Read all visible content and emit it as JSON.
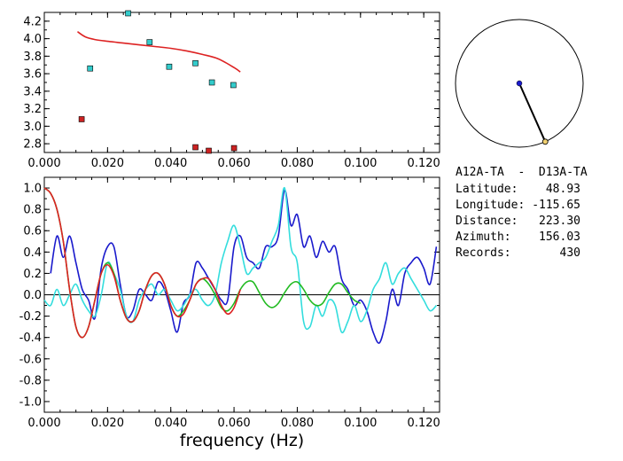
{
  "station_pair": "A12A-TA  -  D13A-TA",
  "info": [
    {
      "label": "Latitude:",
      "value": "48.93"
    },
    {
      "label": "Longitude:",
      "value": "-115.65"
    },
    {
      "label": "Distance:",
      "value": "223.30"
    },
    {
      "label": "Azimuth:",
      "value": "156.03"
    },
    {
      "label": "Records:",
      "value": "430"
    }
  ],
  "compass": {
    "azimuth_deg": 156.03
  },
  "chart_data": [
    {
      "type": "scatter",
      "title": "",
      "xlabel": "",
      "ylabel": "",
      "xlim": [
        0,
        0.125
      ],
      "ylim": [
        2.7,
        4.3
      ],
      "x_ticks": [
        "0.000",
        "0.020",
        "0.040",
        "0.060",
        "0.080",
        "0.100",
        "0.120"
      ],
      "y_ticks": [
        "2.8",
        "3.0",
        "3.2",
        "3.4",
        "3.6",
        "3.8",
        "4.0",
        "4.2"
      ],
      "x_tick_values": [
        0,
        0.02,
        0.04,
        0.06,
        0.08,
        0.1,
        0.12
      ],
      "y_tick_values": [
        2.8,
        3.0,
        3.2,
        3.4,
        3.6,
        3.8,
        4.0,
        4.2
      ],
      "series": [
        {
          "color": "#33cccc",
          "marker": "square",
          "points": [
            [
              0.0145,
              3.66
            ],
            [
              0.0265,
              4.29
            ],
            [
              0.0333,
              3.96
            ],
            [
              0.0395,
              3.68
            ],
            [
              0.0478,
              3.72
            ],
            [
              0.053,
              3.5
            ],
            [
              0.0598,
              3.47
            ]
          ]
        },
        {
          "color": "#cc2222",
          "marker": "square",
          "points": [
            [
              0.0118,
              3.08
            ],
            [
              0.0478,
              2.76
            ],
            [
              0.052,
              2.72
            ],
            [
              0.06,
              2.75
            ]
          ]
        },
        {
          "color": "#dd2222",
          "type": "line",
          "points": [
            [
              0.0105,
              4.08
            ],
            [
              0.013,
              4.02
            ],
            [
              0.016,
              3.99
            ],
            [
              0.02,
              3.97
            ],
            [
              0.025,
              3.95
            ],
            [
              0.03,
              3.93
            ],
            [
              0.035,
              3.91
            ],
            [
              0.04,
              3.89
            ],
            [
              0.045,
              3.86
            ],
            [
              0.05,
              3.82
            ],
            [
              0.055,
              3.77
            ],
            [
              0.06,
              3.67
            ],
            [
              0.062,
              3.62
            ]
          ]
        }
      ]
    },
    {
      "type": "line",
      "title": "",
      "xlabel": "frequency (Hz)",
      "ylabel": "",
      "xlim": [
        0,
        0.125
      ],
      "ylim": [
        -1.1,
        1.1
      ],
      "x_ticks": [
        "0.000",
        "0.020",
        "0.040",
        "0.060",
        "0.080",
        "0.100",
        "0.120"
      ],
      "y_ticks": [
        "1.0",
        "0.8",
        "0.6",
        "0.4",
        "0.2",
        "0.0",
        "-0.2",
        "-0.4",
        "-0.6",
        "-0.8",
        "-1.0"
      ],
      "x_tick_values": [
        0,
        0.02,
        0.04,
        0.06,
        0.08,
        0.1,
        0.12
      ],
      "y_tick_values": [
        1.0,
        0.8,
        0.6,
        0.4,
        0.2,
        0.0,
        -0.2,
        -0.4,
        -0.6,
        -0.8,
        -1.0
      ],
      "zero_line": true,
      "series": [
        {
          "color": "#1a1acc",
          "x": [
            0.002,
            0.004,
            0.006,
            0.008,
            0.01,
            0.012,
            0.014,
            0.016,
            0.018,
            0.02,
            0.022,
            0.024,
            0.026,
            0.028,
            0.03,
            0.032,
            0.034,
            0.036,
            0.038,
            0.04,
            0.042,
            0.044,
            0.046,
            0.048,
            0.05,
            0.052,
            0.054,
            0.056,
            0.058,
            0.06,
            0.062,
            0.064,
            0.066,
            0.068,
            0.07,
            0.072,
            0.074,
            0.076,
            0.078,
            0.08,
            0.082,
            0.084,
            0.086,
            0.088,
            0.09,
            0.092,
            0.094,
            0.096,
            0.098,
            0.1,
            0.102,
            0.104,
            0.106,
            0.108,
            0.11,
            0.112,
            0.114,
            0.116,
            0.118,
            0.12,
            0.122,
            0.124
          ],
          "y": [
            0.2,
            0.55,
            0.35,
            0.55,
            0.3,
            0.05,
            -0.05,
            -0.22,
            0.25,
            0.45,
            0.45,
            0.1,
            -0.2,
            -0.15,
            0.05,
            0.0,
            -0.05,
            0.12,
            0.05,
            -0.15,
            -0.35,
            -0.08,
            0.0,
            0.3,
            0.25,
            0.15,
            0.05,
            -0.05,
            -0.05,
            0.45,
            0.55,
            0.35,
            0.3,
            0.25,
            0.45,
            0.45,
            0.55,
            0.98,
            0.65,
            0.75,
            0.45,
            0.55,
            0.35,
            0.5,
            0.4,
            0.45,
            0.15,
            0.05,
            -0.1,
            -0.05,
            -0.15,
            -0.35,
            -0.45,
            -0.25,
            0.05,
            -0.1,
            0.2,
            0.3,
            0.35,
            0.25,
            0.1,
            0.45
          ]
        },
        {
          "color": "#33dddd",
          "x": [
            0.0,
            0.002,
            0.004,
            0.006,
            0.008,
            0.01,
            0.012,
            0.014,
            0.016,
            0.018,
            0.02,
            0.022,
            0.024,
            0.026,
            0.028,
            0.03,
            0.032,
            0.034,
            0.036,
            0.038,
            0.04,
            0.042,
            0.044,
            0.046,
            0.048,
            0.05,
            0.052,
            0.054,
            0.056,
            0.058,
            0.06,
            0.062,
            0.064,
            0.066,
            0.068,
            0.07,
            0.072,
            0.074,
            0.076,
            0.078,
            0.08,
            0.082,
            0.084,
            0.086,
            0.088,
            0.09,
            0.092,
            0.094,
            0.096,
            0.098,
            0.1,
            0.102,
            0.104,
            0.106,
            0.108,
            0.11,
            0.112,
            0.114,
            0.116,
            0.118,
            0.12,
            0.122,
            0.124
          ],
          "y": [
            -0.05,
            -0.1,
            0.05,
            -0.1,
            0.0,
            0.1,
            -0.05,
            -0.15,
            -0.2,
            0.0,
            0.3,
            0.2,
            0.05,
            -0.2,
            -0.25,
            -0.05,
            0.05,
            0.1,
            0.0,
            0.05,
            -0.05,
            -0.15,
            -0.1,
            0.0,
            0.05,
            -0.05,
            -0.1,
            0.0,
            0.3,
            0.5,
            0.65,
            0.45,
            0.2,
            0.25,
            0.3,
            0.35,
            0.5,
            0.65,
            1.0,
            0.45,
            0.3,
            -0.25,
            -0.3,
            -0.1,
            -0.2,
            -0.05,
            -0.1,
            -0.35,
            -0.25,
            -0.1,
            -0.25,
            -0.15,
            0.05,
            0.15,
            0.3,
            0.1,
            0.2,
            0.25,
            0.15,
            0.05,
            -0.05,
            -0.15,
            -0.1
          ]
        },
        {
          "color": "#22bb22",
          "x": [
            0.0,
            0.002,
            0.004,
            0.006,
            0.008,
            0.01,
            0.012,
            0.014,
            0.016,
            0.018,
            0.02,
            0.022,
            0.024,
            0.026,
            0.028,
            0.03,
            0.032,
            0.034,
            0.036,
            0.038,
            0.04,
            0.042,
            0.044,
            0.046,
            0.048,
            0.05,
            0.052,
            0.054,
            0.056,
            0.058,
            0.06,
            0.062,
            0.064,
            0.066,
            0.068,
            0.07,
            0.072,
            0.074,
            0.076,
            0.078,
            0.08,
            0.082,
            0.084,
            0.086,
            0.088,
            0.09,
            0.092,
            0.094,
            0.096,
            0.098,
            0.1
          ],
          "y": [
            1.0,
            0.95,
            0.8,
            0.5,
            0.05,
            -0.3,
            -0.4,
            -0.3,
            -0.05,
            0.2,
            0.3,
            0.2,
            -0.05,
            -0.22,
            -0.25,
            -0.15,
            0.05,
            0.18,
            0.2,
            0.1,
            -0.1,
            -0.2,
            -0.15,
            -0.05,
            0.1,
            0.15,
            0.1,
            0.0,
            -0.12,
            -0.15,
            -0.08,
            0.05,
            0.12,
            0.12,
            0.02,
            -0.08,
            -0.12,
            -0.08,
            0.02,
            0.1,
            0.12,
            0.05,
            -0.05,
            -0.1,
            -0.08,
            0.02,
            0.1,
            0.1,
            0.02,
            -0.05,
            -0.08
          ]
        },
        {
          "color": "#dd2222",
          "x": [
            0.0,
            0.002,
            0.004,
            0.006,
            0.008,
            0.01,
            0.012,
            0.014,
            0.016,
            0.018,
            0.02,
            0.022,
            0.024,
            0.026,
            0.028,
            0.03,
            0.032,
            0.034,
            0.036,
            0.038,
            0.04,
            0.042,
            0.044,
            0.046,
            0.048,
            0.05,
            0.052,
            0.054,
            0.056,
            0.058,
            0.06,
            0.062
          ],
          "y": [
            1.0,
            0.95,
            0.8,
            0.5,
            0.05,
            -0.3,
            -0.4,
            -0.3,
            -0.05,
            0.2,
            0.28,
            0.18,
            -0.05,
            -0.22,
            -0.25,
            -0.15,
            0.05,
            0.18,
            0.2,
            0.1,
            -0.1,
            -0.2,
            -0.18,
            -0.05,
            0.1,
            0.15,
            0.15,
            0.05,
            -0.1,
            -0.18,
            -0.12,
            0.05
          ]
        }
      ]
    }
  ]
}
